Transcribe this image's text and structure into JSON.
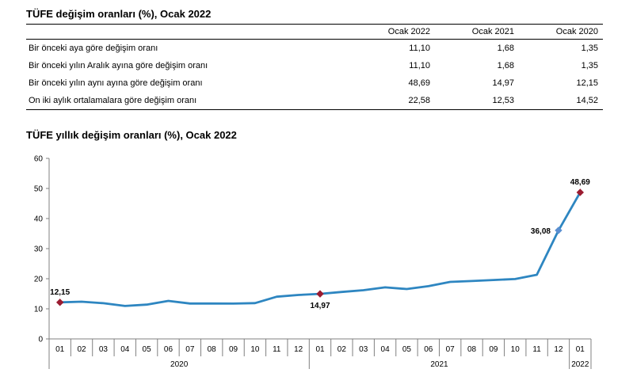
{
  "table": {
    "title": "TÜFE değişim oranları (%), Ocak 2022",
    "columns": [
      "Ocak 2022",
      "Ocak 2021",
      "Ocak 2020"
    ],
    "rows": [
      {
        "label": "Bir önceki aya göre değişim oranı",
        "values": [
          "11,10",
          "1,68",
          "1,35"
        ]
      },
      {
        "label": "Bir önceki yılın Aralık ayına göre değişim oranı",
        "values": [
          "11,10",
          "1,68",
          "1,35"
        ]
      },
      {
        "label": "Bir önceki yılın aynı ayına göre değişim oranı",
        "values": [
          "48,69",
          "14,97",
          "12,15"
        ]
      },
      {
        "label": "On iki aylık ortalamalara göre değişim oranı",
        "values": [
          "22,58",
          "12,53",
          "14,52"
        ]
      }
    ]
  },
  "chart_data": {
    "type": "line",
    "title": "TÜFE yıllık değişim oranları (%), Ocak 2022",
    "x": [
      "01",
      "02",
      "03",
      "04",
      "05",
      "06",
      "07",
      "08",
      "09",
      "10",
      "11",
      "12",
      "01",
      "02",
      "03",
      "04",
      "05",
      "06",
      "07",
      "08",
      "09",
      "10",
      "11",
      "12",
      "01"
    ],
    "year_groups": [
      {
        "label": "2020",
        "count": 12
      },
      {
        "label": "2021",
        "count": 12
      },
      {
        "label": "2022",
        "count": 1
      }
    ],
    "series": [
      {
        "values": [
          12.15,
          12.37,
          11.86,
          10.94,
          11.39,
          12.62,
          11.76,
          11.77,
          11.75,
          11.89,
          14.03,
          14.6,
          14.97,
          15.61,
          16.19,
          17.14,
          16.59,
          17.53,
          18.95,
          19.25,
          19.58,
          19.89,
          21.31,
          36.08,
          48.69
        ],
        "color": "#2e86c1"
      }
    ],
    "data_labels": [
      {
        "index": 0,
        "text": "12,15",
        "position": "above"
      },
      {
        "index": 12,
        "text": "14,97",
        "position": "below"
      },
      {
        "index": 23,
        "text": "36,08",
        "position": "left"
      },
      {
        "index": 24,
        "text": "48,69",
        "position": "above"
      }
    ],
    "highlighted_points": [
      0,
      12,
      24
    ],
    "marker_color": "#9b1c31",
    "secondary_marker_color": "#5b8fd0",
    "ylim": [
      0,
      60
    ],
    "yticks": [
      0,
      10,
      20,
      30,
      40,
      50,
      60
    ],
    "grid": false
  }
}
